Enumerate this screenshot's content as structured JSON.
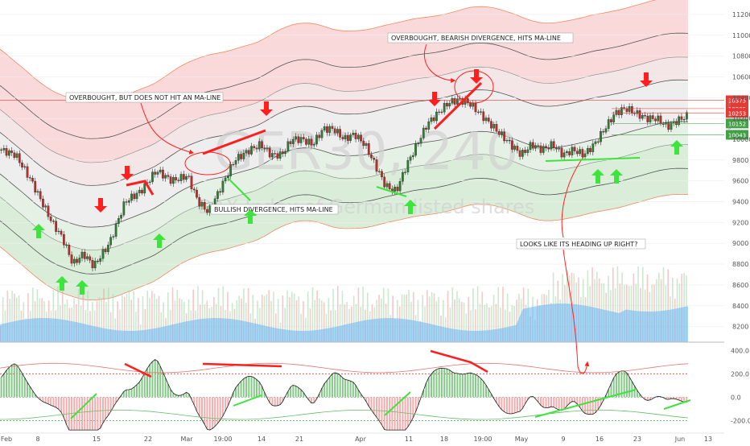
{
  "chart_data": {
    "type": "candlestick",
    "watermark": {
      "symbol": "GER30, 240",
      "description": "DAX Index of German listed shares"
    },
    "price_axis": {
      "ylim": [
        8050,
        11300
      ],
      "ticks": [
        8200,
        8400,
        8600,
        8800,
        9000,
        9200,
        9400,
        9600,
        9800,
        10000,
        10200,
        10400,
        10600,
        10800,
        11000,
        11200
      ],
      "tick_labels": [
        "8200",
        "8400",
        "8600",
        "8800",
        "9000",
        "9200",
        "9400",
        "9600",
        "9800",
        "10000",
        "10200",
        "10400",
        "10600",
        "10800",
        "11000",
        "11200"
      ],
      "level_tags": [
        {
          "value": 10375,
          "label": "10375",
          "color": "#e53935"
        },
        {
          "value": 10295,
          "label": "10295",
          "color": "#e53935",
          "side": "R"
        },
        {
          "value": 10253,
          "label": "10253",
          "color": "#e53935",
          "side": "R"
        },
        {
          "value": 10152,
          "label": "10152",
          "color": "#43a047",
          "side": "S"
        },
        {
          "value": 10043,
          "label": "10043",
          "color": "#43a047",
          "side": "S"
        }
      ]
    },
    "time_axis": {
      "tick_labels": [
        "Feb",
        "8",
        "15",
        "22",
        "Mar",
        "19:00",
        "14",
        "21",
        "Apr",
        "11",
        "18",
        "19:00",
        "May",
        "9",
        "16",
        "23",
        "Jun",
        "13"
      ]
    },
    "price_path": [
      {
        "t": 0,
        "v": 9900
      },
      {
        "t": 3,
        "v": 9850
      },
      {
        "t": 6,
        "v": 9600
      },
      {
        "t": 8,
        "v": 9400
      },
      {
        "t": 10,
        "v": 9200
      },
      {
        "t": 12,
        "v": 9050
      },
      {
        "t": 14,
        "v": 8800
      },
      {
        "t": 16,
        "v": 8900
      },
      {
        "t": 18,
        "v": 8780
      },
      {
        "t": 21,
        "v": 9000
      },
      {
        "t": 24,
        "v": 9400
      },
      {
        "t": 27,
        "v": 9500
      },
      {
        "t": 30,
        "v": 9700
      },
      {
        "t": 33,
        "v": 9600
      },
      {
        "t": 36,
        "v": 9650
      },
      {
        "t": 38,
        "v": 9400
      },
      {
        "t": 40,
        "v": 9300
      },
      {
        "t": 42,
        "v": 9500
      },
      {
        "t": 45,
        "v": 9800
      },
      {
        "t": 48,
        "v": 9900
      },
      {
        "t": 50,
        "v": 9950
      },
      {
        "t": 52,
        "v": 9850
      },
      {
        "t": 54,
        "v": 9850
      },
      {
        "t": 56,
        "v": 10000
      },
      {
        "t": 58,
        "v": 10000
      },
      {
        "t": 60,
        "v": 9950
      },
      {
        "t": 62,
        "v": 10100
      },
      {
        "t": 64,
        "v": 10100
      },
      {
        "t": 66,
        "v": 10000
      },
      {
        "t": 68,
        "v": 10050
      },
      {
        "t": 70,
        "v": 9950
      },
      {
        "t": 72,
        "v": 9750
      },
      {
        "t": 74,
        "v": 9550
      },
      {
        "t": 76,
        "v": 9500
      },
      {
        "t": 78,
        "v": 9750
      },
      {
        "t": 80,
        "v": 9950
      },
      {
        "t": 82,
        "v": 10150
      },
      {
        "t": 84,
        "v": 10250
      },
      {
        "t": 86,
        "v": 10350
      },
      {
        "t": 88,
        "v": 10380
      },
      {
        "t": 90,
        "v": 10350
      },
      {
        "t": 92,
        "v": 10250
      },
      {
        "t": 94,
        "v": 10150
      },
      {
        "t": 96,
        "v": 10050
      },
      {
        "t": 98,
        "v": 9950
      },
      {
        "t": 100,
        "v": 9850
      },
      {
        "t": 102,
        "v": 9950
      },
      {
        "t": 104,
        "v": 9900
      },
      {
        "t": 106,
        "v": 9950
      },
      {
        "t": 108,
        "v": 9850
      },
      {
        "t": 110,
        "v": 9900
      },
      {
        "t": 112,
        "v": 9850
      },
      {
        "t": 114,
        "v": 9950
      },
      {
        "t": 116,
        "v": 10100
      },
      {
        "t": 118,
        "v": 10250
      },
      {
        "t": 120,
        "v": 10300
      },
      {
        "t": 122,
        "v": 10250
      },
      {
        "t": 124,
        "v": 10200
      },
      {
        "t": 126,
        "v": 10200
      },
      {
        "t": 128,
        "v": 10120
      },
      {
        "t": 130,
        "v": 10180
      },
      {
        "t": 132,
        "v": 10230
      }
    ],
    "oscillator": {
      "ylim": [
        -300,
        450
      ],
      "ticks": [
        -200,
        0,
        200,
        400
      ],
      "tick_labels": [
        "-200.0",
        "0.0",
        "200.0",
        "400.0"
      ]
    },
    "annotations": [
      "OVERBOUGHT, BUT DOES NOT HIT AN MA-LINE",
      "BULLISH DIVERGENCE, HITS MA-LINE",
      "OVERBOUGHT, BEARISH DIVERGENCE, HITS MA-LINE",
      "LOOKS LIKE ITS HEADING UP RIGHT?"
    ],
    "colors": {
      "up": "#26a69a",
      "down": "#ef5350",
      "band_red": "#f8cfcf",
      "band_green": "#cfe9d0",
      "signal_red": "#ff1f1f",
      "signal_green": "#3ce43c"
    }
  }
}
